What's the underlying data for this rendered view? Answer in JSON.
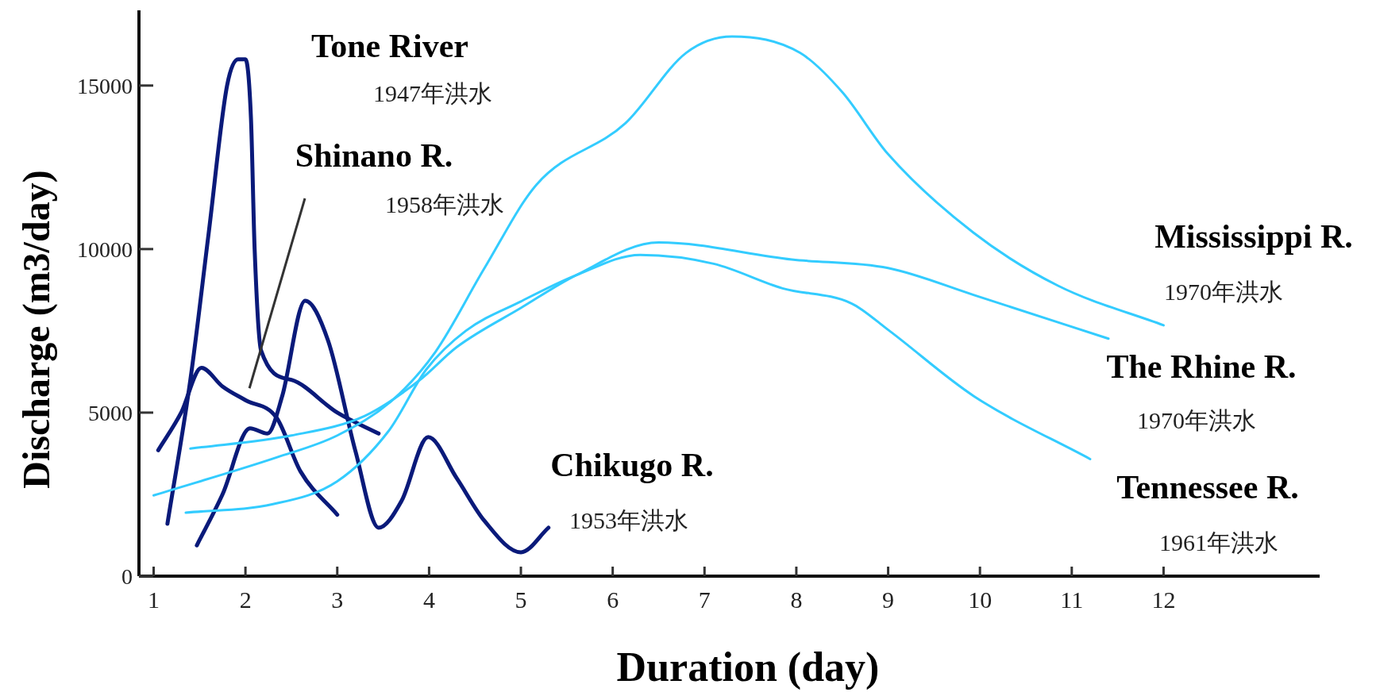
{
  "chart_data": {
    "type": "line",
    "xlabel": "Duration (day)",
    "ylabel": "Discharge (m3/day)",
    "xlim": [
      0.84,
      13.7
    ],
    "xticks": [
      1,
      2,
      3,
      4,
      5,
      6,
      7,
      8,
      9,
      10,
      11,
      12
    ],
    "ylim": [
      0,
      17300
    ],
    "yticks": [
      0,
      5000,
      10000,
      15000
    ],
    "grid": false,
    "legend": false,
    "marker": "none",
    "line_style": "solid",
    "series": [
      {
        "name": "Tone River",
        "color": "#0a1a7a",
        "x": [
          1.15,
          1.4,
          1.6,
          1.8,
          1.92,
          2.0,
          2.06,
          2.1,
          2.17,
          2.5,
          3.0,
          3.45
        ],
        "values": [
          1600,
          6000,
          10500,
          15000,
          15800,
          15800,
          14000,
          10000,
          6900,
          6000,
          5000,
          4360
        ]
      },
      {
        "name": "Shinano R.",
        "color": "#0a1a7a",
        "x": [
          1.05,
          1.3,
          1.52,
          1.75,
          2.0,
          2.34,
          2.6,
          3.0
        ],
        "values": [
          3850,
          5000,
          6370,
          5800,
          5380,
          4840,
          3200,
          1880
        ]
      },
      {
        "name": "Chikugo  R.",
        "color": "#0a1a7a",
        "x": [
          1.47,
          1.75,
          2.05,
          2.24,
          2.4,
          2.65,
          2.9,
          3.2,
          3.45,
          3.7,
          3.99,
          4.3,
          4.6,
          5.0,
          5.3
        ],
        "values": [
          940,
          2500,
          4520,
          4360,
          5500,
          8420,
          7200,
          3800,
          1480,
          2300,
          4250,
          3000,
          1700,
          730,
          1480
        ]
      },
      {
        "name": "Mississippi R.",
        "color": "#33ccff",
        "x": [
          1.0,
          2.34,
          3.0,
          3.6,
          4.07,
          4.6,
          5.17,
          6.14,
          6.8,
          7.3,
          8.04,
          8.5,
          9.0,
          9.93,
          10.85,
          12.0
        ],
        "values": [
          2470,
          3630,
          4300,
          5380,
          6860,
          9400,
          11970,
          13850,
          16000,
          16500,
          16000,
          14800,
          12900,
          10500,
          8880,
          7670
        ]
      },
      {
        "name": "The Rhine R.",
        "color": "#33ccff",
        "x": [
          1.4,
          2.5,
          3.3,
          3.9,
          4.3,
          5.0,
          5.6,
          6.5,
          7.95,
          9.0,
          9.93,
          11.4
        ],
        "values": [
          3900,
          4300,
          4900,
          6000,
          7000,
          8200,
          9200,
          10200,
          9680,
          9420,
          8600,
          7260
        ]
      },
      {
        "name": "Tennessee R.",
        "color": "#33ccff",
        "x": [
          1.35,
          2.3,
          3.0,
          3.56,
          3.97,
          4.4,
          5.0,
          5.6,
          6.3,
          7.1,
          7.85,
          8.6,
          9.0,
          9.93,
          11.2
        ],
        "values": [
          1940,
          2200,
          2900,
          4440,
          6320,
          7500,
          8400,
          9200,
          9820,
          9550,
          8800,
          8340,
          7530,
          5510,
          3580
        ]
      }
    ],
    "annotations": [
      "1947年洪水",
      "1958年洪水",
      "1953年洪水",
      "1970年洪水",
      "1970年洪水",
      "1961年洪水"
    ]
  }
}
